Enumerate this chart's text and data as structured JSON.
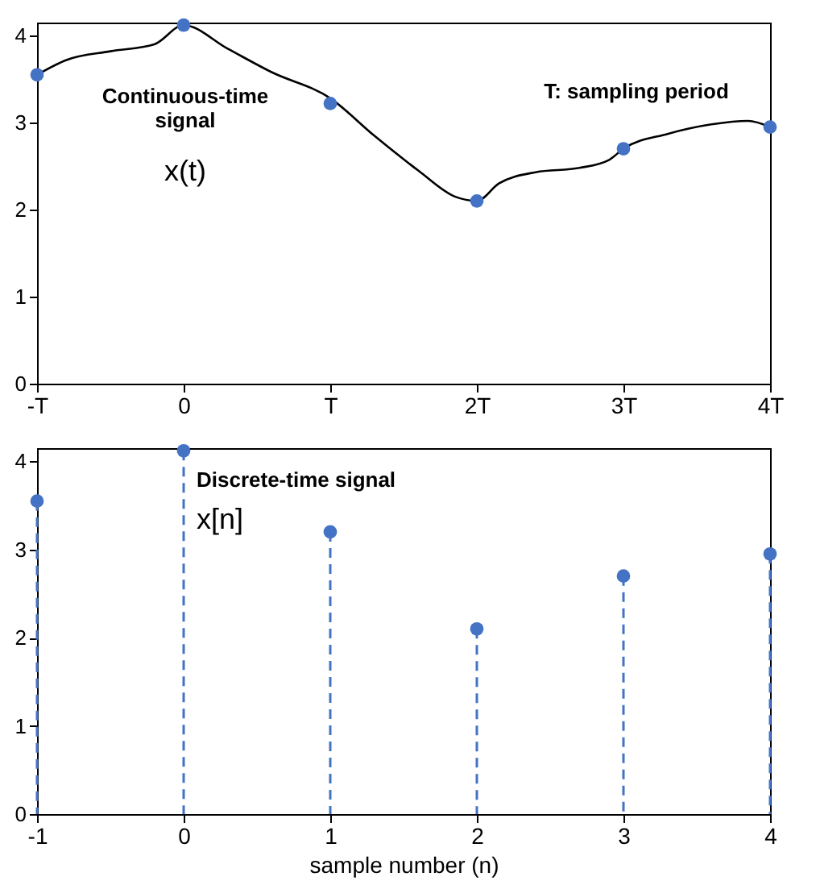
{
  "chart_data": [
    {
      "type": "line",
      "xlim": [
        -1,
        4
      ],
      "ylim": [
        0,
        4.15
      ],
      "xticks": [
        {
          "value": -1,
          "label": "-T"
        },
        0,
        {
          "value": 1,
          "label": "T"
        },
        {
          "value": 2,
          "label": "2T"
        },
        {
          "value": 3,
          "label": "3T"
        },
        {
          "value": 4,
          "label": "4T"
        }
      ],
      "yticks": [
        0,
        1,
        2,
        3,
        4
      ],
      "series": [
        {
          "type": "line",
          "color": "#000000",
          "x": [
            -1,
            -0.8,
            -0.5,
            -0.2,
            0,
            0.3,
            0.6,
            1,
            1.3,
            1.6,
            1.85,
            2,
            2.15,
            2.4,
            2.7,
            2.9,
            3,
            3.3,
            3.6,
            3.85,
            4
          ],
          "values": [
            3.55,
            3.72,
            3.82,
            3.9,
            4.12,
            3.85,
            3.58,
            3.28,
            2.85,
            2.45,
            2.15,
            2.1,
            2.3,
            2.43,
            2.48,
            2.57,
            2.7,
            2.87,
            2.98,
            3.02,
            2.95
          ]
        },
        {
          "type": "scatter",
          "color": "#4472c4",
          "x": [
            -1,
            0,
            1,
            2,
            3,
            4
          ],
          "values": [
            3.55,
            4.12,
            3.22,
            2.1,
            2.7,
            2.95
          ]
        }
      ],
      "annotations": [
        "Continuous-time\nsignal",
        "x(t)",
        "T: sampling period"
      ]
    },
    {
      "type": "lollipop",
      "xlim": [
        -1,
        4
      ],
      "ylim": [
        0,
        4.15
      ],
      "xticks": [
        -1,
        0,
        1,
        2,
        3,
        4
      ],
      "yticks": [
        0,
        1,
        2,
        3,
        4
      ],
      "xlabel": "sample number (n)",
      "marker": "circle",
      "line_style": "dashed",
      "x": [
        -1,
        0,
        1,
        2,
        3,
        4
      ],
      "series": [
        {
          "color": "#4472c4",
          "values": [
            3.55,
            4.12,
            3.2,
            2.1,
            2.7,
            2.95
          ]
        }
      ],
      "annotations": [
        "Discrete-time signal",
        "x[n]"
      ]
    }
  ]
}
